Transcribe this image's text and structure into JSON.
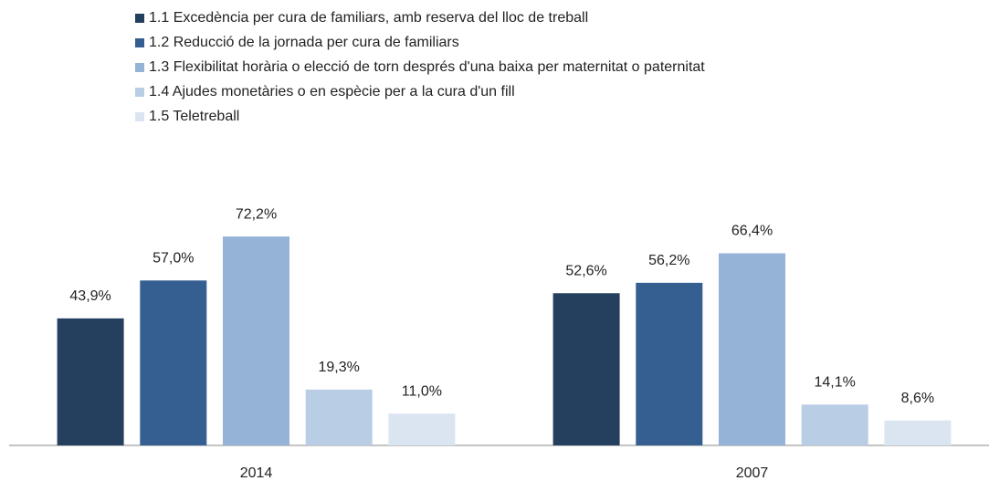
{
  "chart_data": {
    "type": "bar",
    "categories": [
      "2014",
      "2007"
    ],
    "series": [
      {
        "name": "1.1 Excedència per cura de familiars, amb reserva del lloc de treball",
        "color": "#253f5f",
        "values": [
          43.9,
          52.6
        ],
        "value_labels": [
          "43,9%",
          "52,6%"
        ]
      },
      {
        "name": "1.2 Reducció de la jornada per cura de familiars",
        "color": "#365f91",
        "values": [
          57.0,
          56.2
        ],
        "value_labels": [
          "57,0%",
          "56,2%"
        ]
      },
      {
        "name": "1.3 Flexibilitat horària o elecció de torn després d'una baixa per maternitat o paternitat",
        "color": "#95b3d7",
        "values": [
          72.2,
          66.4
        ],
        "value_labels": [
          "72,2%",
          "66,4%"
        ]
      },
      {
        "name": "1.4 Ajudes monetàries o en espècie per a la cura d'un fill",
        "color": "#b9cde5",
        "values": [
          19.3,
          14.1
        ],
        "value_labels": [
          "19,3%",
          "14,1%"
        ]
      },
      {
        "name": "1.5 Teletreball",
        "color": "#dbe5f1",
        "values": [
          11.0,
          8.6
        ],
        "value_labels": [
          "11,0%",
          "8,6%"
        ]
      }
    ],
    "legend": "top"
  }
}
